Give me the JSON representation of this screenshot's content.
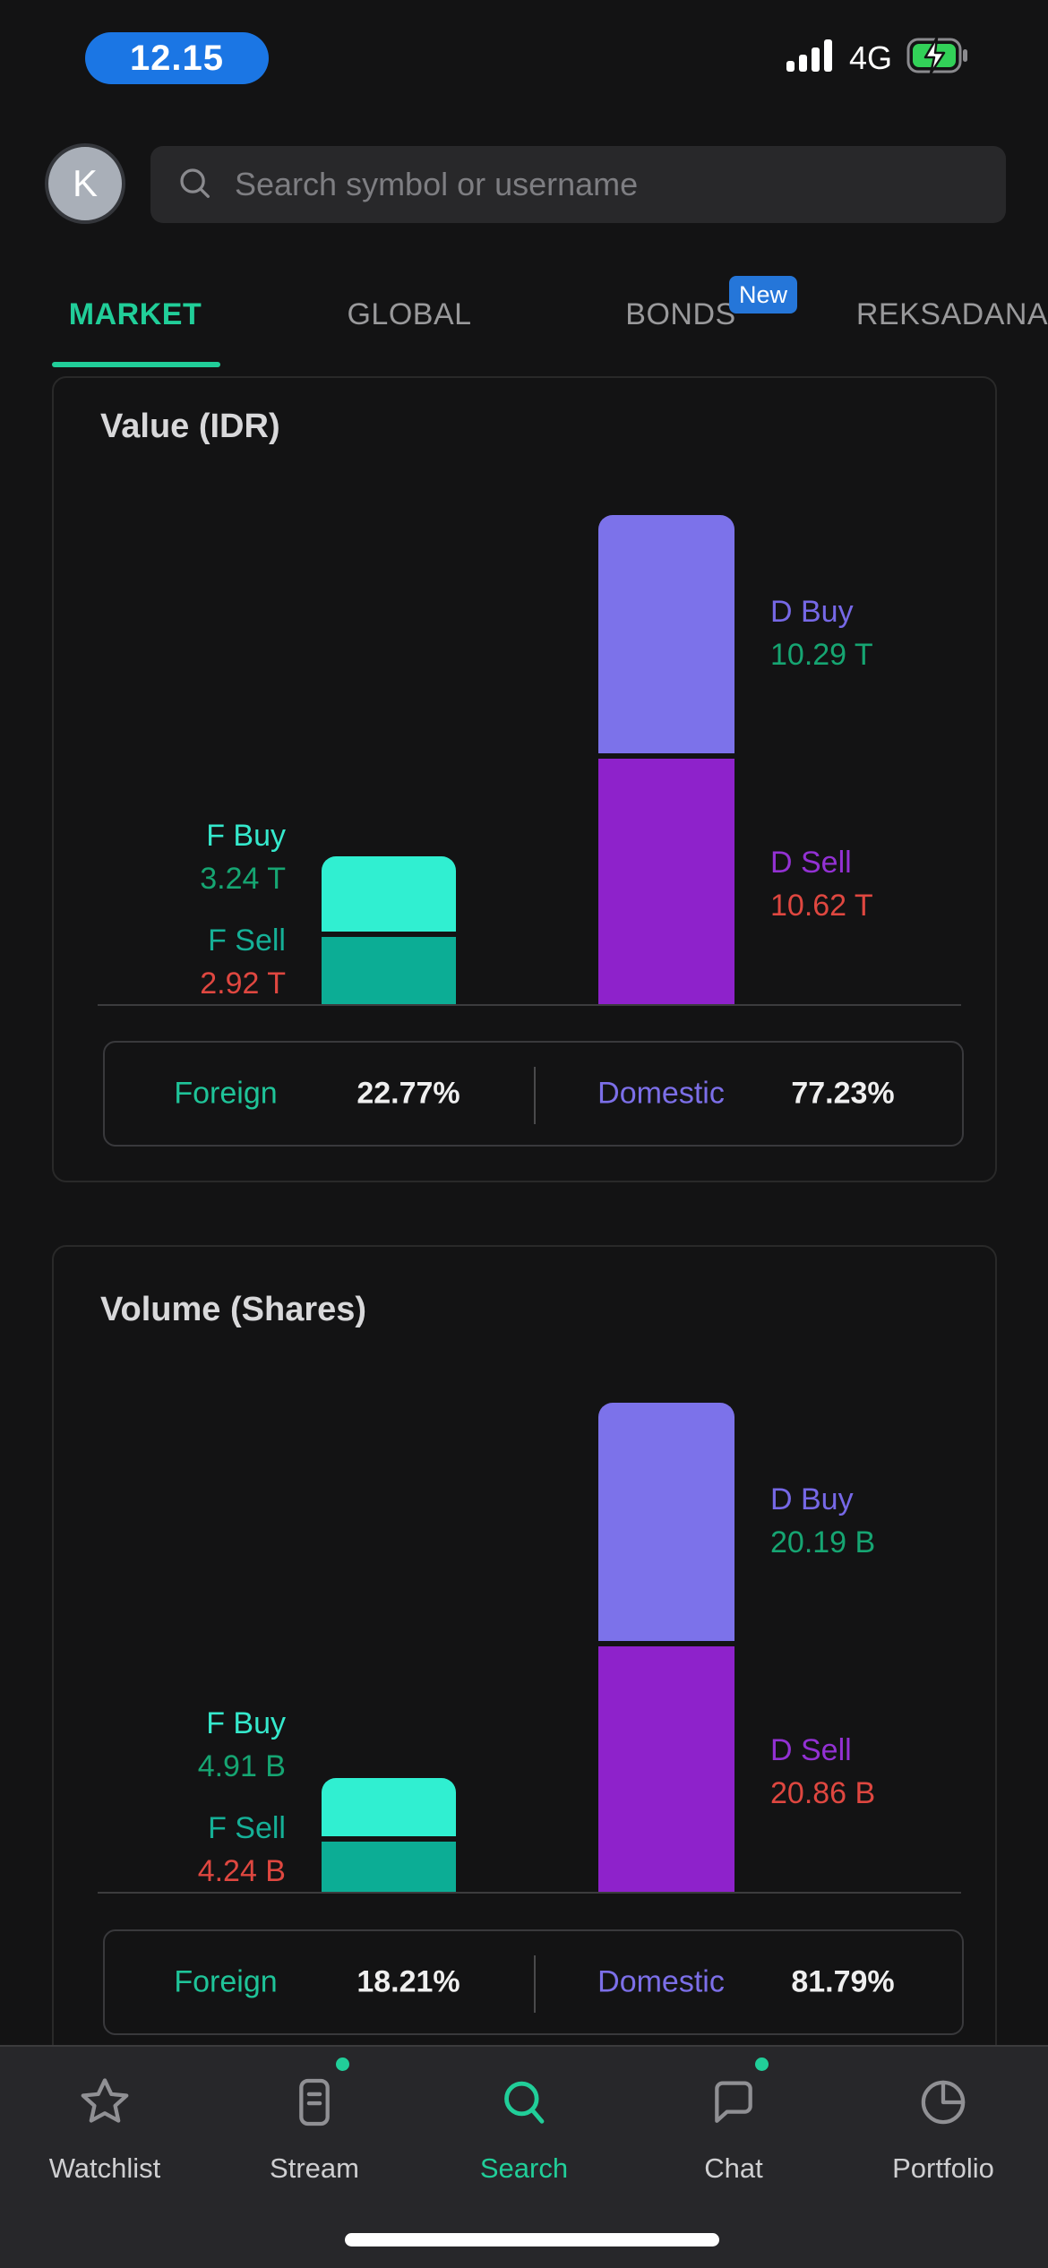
{
  "status_bar": {
    "time": "12.15",
    "network": "4G"
  },
  "header": {
    "avatar_letter": "K",
    "search_placeholder": "Search symbol or username"
  },
  "tabs": [
    {
      "label": "MARKET",
      "active": true
    },
    {
      "label": "GLOBAL",
      "active": false
    },
    {
      "label": "BONDS",
      "active": false,
      "badge": "New"
    },
    {
      "label": "REKSADANA",
      "active": false
    }
  ],
  "cards": [
    {
      "title": "Value (IDR)",
      "chart": {
        "type": "bar",
        "unit": "T",
        "f_buy": {
          "label": "F Buy",
          "value": 3.24,
          "display": "3.24 T"
        },
        "f_sell": {
          "label": "F Sell",
          "value": 2.92,
          "display": "2.92 T"
        },
        "d_buy": {
          "label": "D Buy",
          "value": 10.29,
          "display": "10.29 T"
        },
        "d_sell": {
          "label": "D Sell",
          "value": 10.62,
          "display": "10.62 T"
        }
      },
      "summary": {
        "foreign_label": "Foreign",
        "foreign_value": "22.77%",
        "domestic_label": "Domestic",
        "domestic_value": "77.23%"
      }
    },
    {
      "title": "Volume (Shares)",
      "chart": {
        "type": "bar",
        "unit": "B",
        "f_buy": {
          "label": "F Buy",
          "value": 4.91,
          "display": "4.91 B"
        },
        "f_sell": {
          "label": "F Sell",
          "value": 4.24,
          "display": "4.24 B"
        },
        "d_buy": {
          "label": "D Buy",
          "value": 20.19,
          "display": "20.19 B"
        },
        "d_sell": {
          "label": "D Sell",
          "value": 20.86,
          "display": "20.86 B"
        }
      },
      "summary": {
        "foreign_label": "Foreign",
        "foreign_value": "18.21%",
        "domestic_label": "Domestic",
        "domestic_value": "81.79%"
      }
    }
  ],
  "chart_data": [
    {
      "type": "bar",
      "title": "Value (IDR)",
      "categories": [
        "F Buy",
        "F Sell",
        "D Buy",
        "D Sell"
      ],
      "values": [
        3.24,
        2.92,
        10.29,
        10.62
      ],
      "unit": "T",
      "foreign_pct": 22.77,
      "domestic_pct": 77.23
    },
    {
      "type": "bar",
      "title": "Volume (Shares)",
      "categories": [
        "F Buy",
        "F Sell",
        "D Buy",
        "D Sell"
      ],
      "values": [
        4.91,
        4.24,
        20.19,
        20.86
      ],
      "unit": "B",
      "foreign_pct": 18.21,
      "domestic_pct": 81.79
    }
  ],
  "bottom_nav": {
    "items": [
      {
        "label": "Watchlist",
        "active": false,
        "dot": false
      },
      {
        "label": "Stream",
        "active": false,
        "dot": true
      },
      {
        "label": "Search",
        "active": true,
        "dot": false
      },
      {
        "label": "Chat",
        "active": false,
        "dot": true
      },
      {
        "label": "Portfolio",
        "active": false,
        "dot": false
      }
    ]
  },
  "colors": {
    "accent_green": "#21CE99",
    "f_buy_bar": "#30EFD1",
    "f_sell_bar": "#0CAD95",
    "d_buy_bar": "#7C72EA",
    "d_sell_bar": "#8E22CB",
    "value_green": "#16A572",
    "value_red": "#DF4740",
    "time_pill_blue": "#1B76E4",
    "badge_blue": "#2576D9",
    "battery_green": "#32D158"
  }
}
